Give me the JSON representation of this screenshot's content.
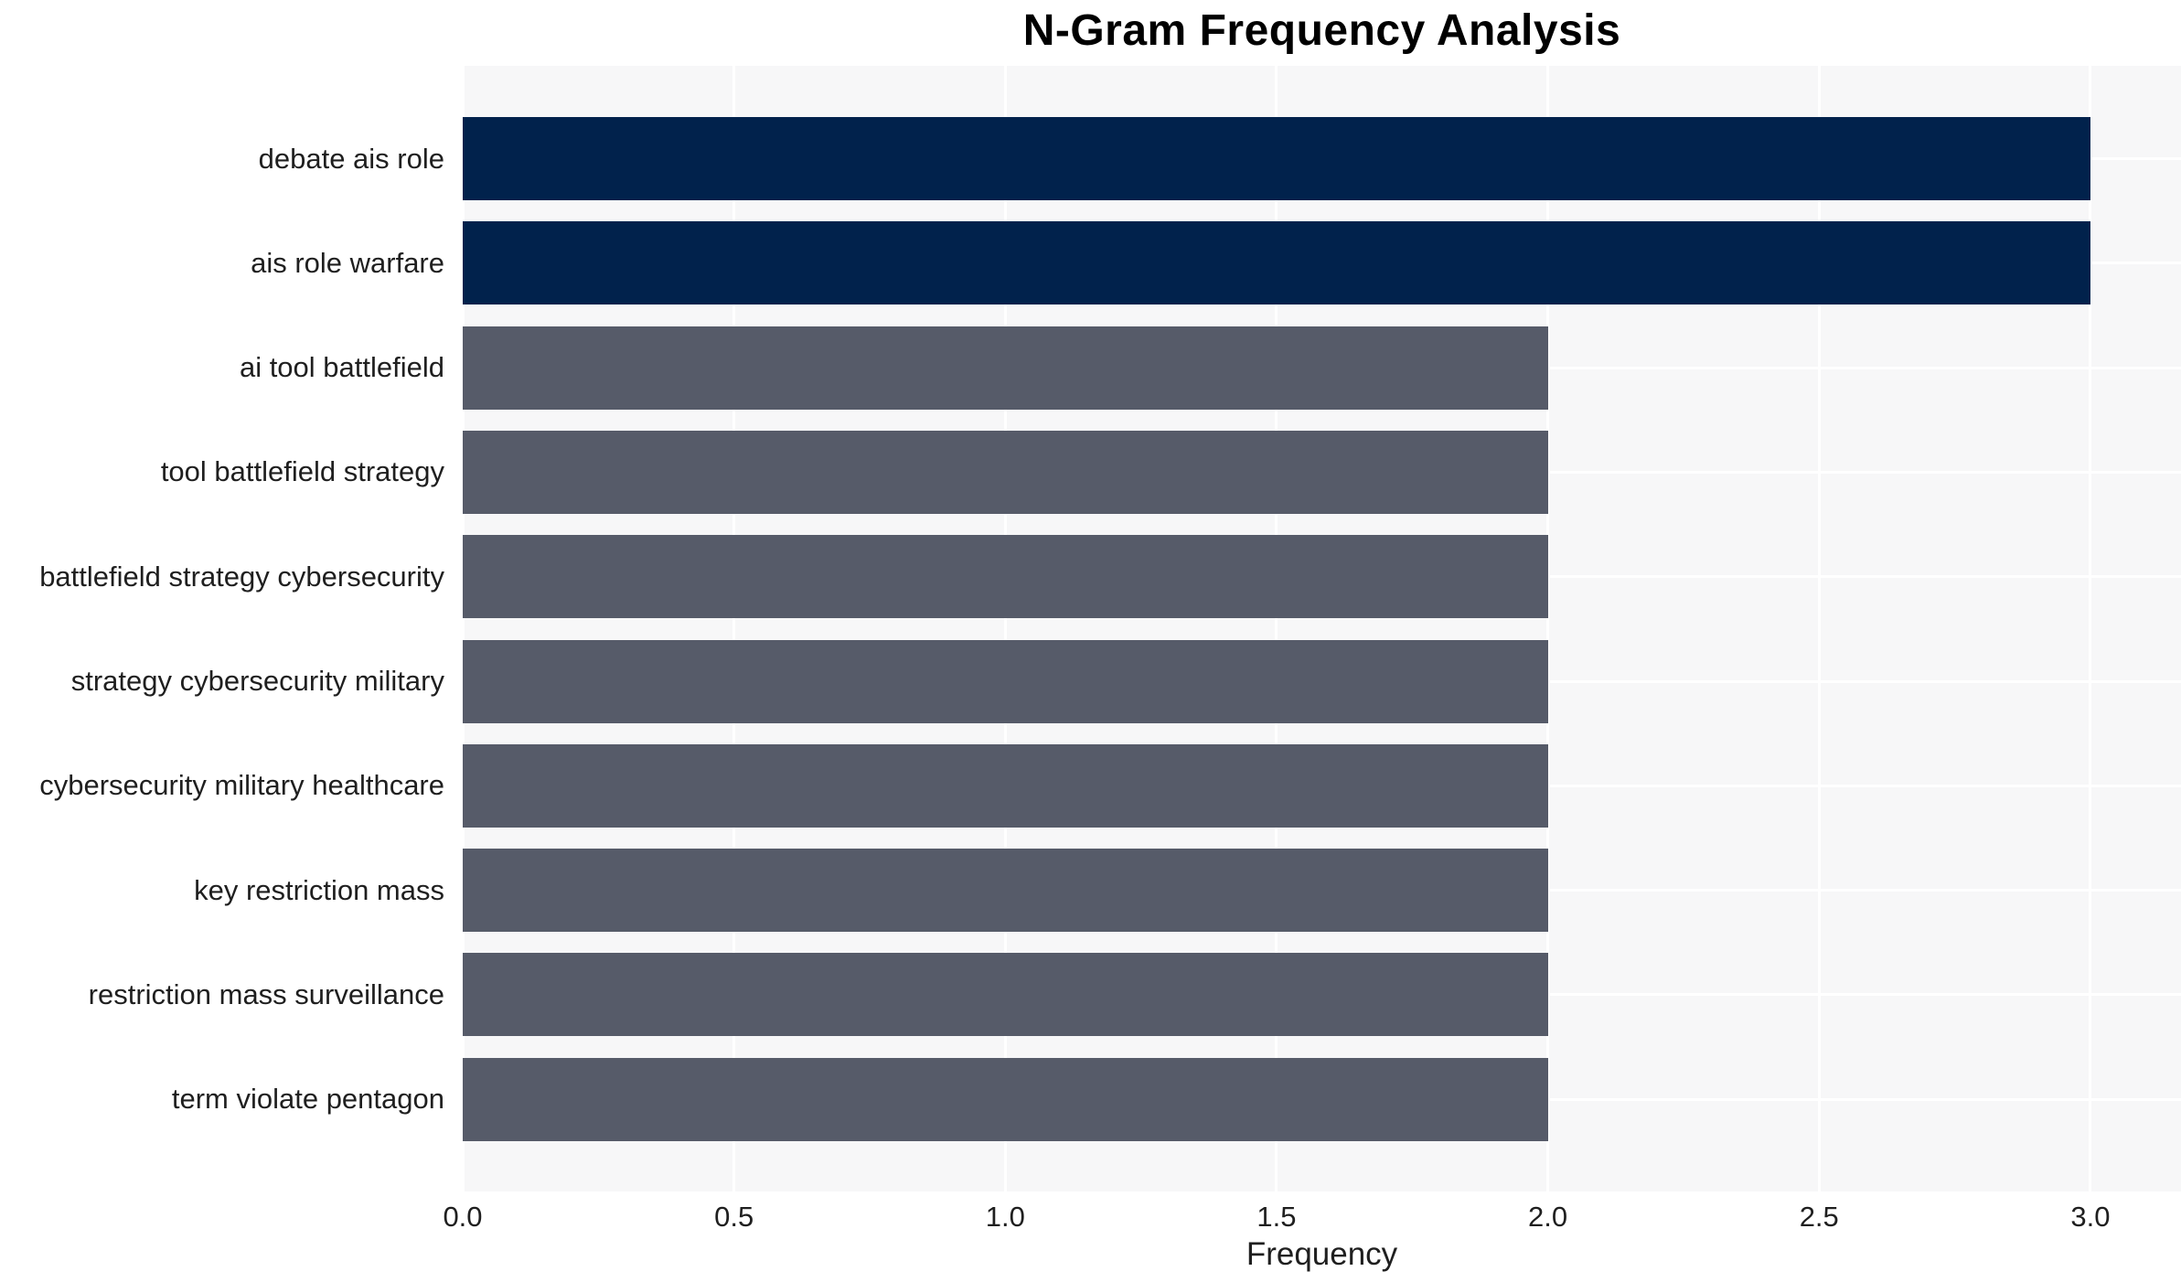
{
  "chart_data": {
    "type": "bar",
    "orientation": "horizontal",
    "title": "N-Gram Frequency Analysis",
    "xlabel": "Frequency",
    "ylabel": "",
    "categories": [
      "debate ais role",
      "ais role warfare",
      "ai tool battlefield",
      "tool battlefield strategy",
      "battlefield strategy cybersecurity",
      "strategy cybersecurity military",
      "cybersecurity military healthcare",
      "key restriction mass",
      "restriction mass surveillance",
      "term violate pentagon"
    ],
    "values": [
      3,
      3,
      2,
      2,
      2,
      2,
      2,
      2,
      2,
      2
    ],
    "bar_colors": [
      "#01224c",
      "#01224c",
      "#565b69",
      "#565b69",
      "#565b69",
      "#565b69",
      "#565b69",
      "#565b69",
      "#565b69",
      "#565b69"
    ],
    "xticks": [
      {
        "value": 0.0,
        "label": "0.0"
      },
      {
        "value": 0.5,
        "label": "0.5"
      },
      {
        "value": 1.0,
        "label": "1.0"
      },
      {
        "value": 1.5,
        "label": "1.5"
      },
      {
        "value": 2.0,
        "label": "2.0"
      },
      {
        "value": 2.5,
        "label": "2.5"
      },
      {
        "value": 3.0,
        "label": "3.0"
      }
    ],
    "xlim": [
      0,
      3.17
    ],
    "grid": true,
    "legend": false,
    "colors": {
      "highlight_bar": "#01224c",
      "regular_bar": "#565b69",
      "plot_background": "#f7f7f8",
      "grid_line": "#ffffff",
      "title_text": "#000000",
      "axis_text": "#1f1f1f"
    }
  }
}
